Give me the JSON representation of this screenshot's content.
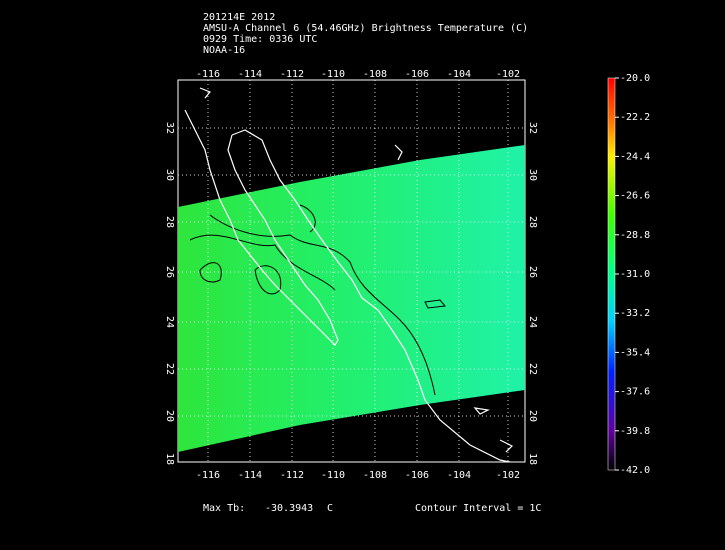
{
  "header": {
    "lines": [
      "201214E 2012",
      "AMSU-A Channel 6 (54.46GHz) Brightness Temperature (C)",
      "0929 Time: 0336 UTC",
      "NOAA-16"
    ]
  },
  "map": {
    "lon_labels": [
      "-116",
      "-114",
      "-112",
      "-110",
      "-108",
      "-106",
      "-104",
      "-102"
    ],
    "lat_labels": [
      "32",
      "30",
      "28",
      "26",
      "24",
      "22",
      "20",
      "18"
    ]
  },
  "colorbar": {
    "labels": [
      "-20.0",
      "-22.2",
      "-24.4",
      "-26.6",
      "-28.8",
      "-31.0",
      "-33.2",
      "-35.4",
      "-37.6",
      "-39.8",
      "-42.0"
    ]
  },
  "footer": {
    "max_tb_label": "Max Tb:",
    "max_tb_value": "-30.3943",
    "max_tb_unit": "C",
    "contour": "Contour Interval = 1C"
  }
}
